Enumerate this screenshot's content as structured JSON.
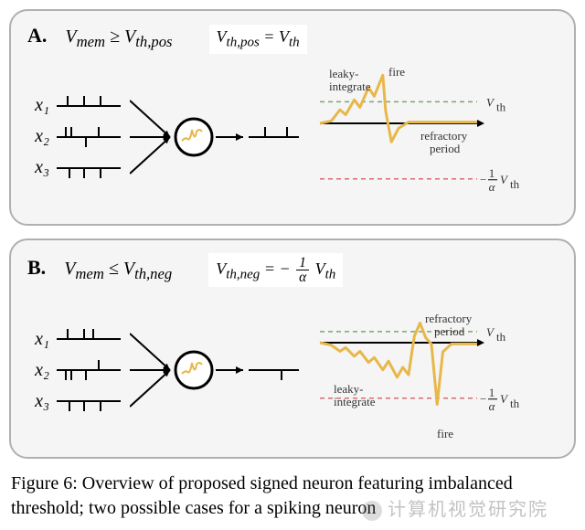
{
  "figure": {
    "caption": "Figure 6: Overview of proposed signed neuron featuring imbalanced threshold; two possible cases for a spiking neuron",
    "watermark": "计算机视觉研究院"
  },
  "colors": {
    "panel_border": "#b0b0b0",
    "panel_bg": "#f5f5f5",
    "signal": "#e8b74a",
    "axis": "#000000",
    "vth_line": "#7fa56a",
    "neg_line": "#d96c6c",
    "text": "#222222"
  },
  "panelA": {
    "letter": "A.",
    "cond_html": "V<sub>mem</sub> ≥ V<sub>th,pos</sub>",
    "eq_html": "V<sub>th,pos</sub>  =  V<sub>th</sub>",
    "inputs": [
      {
        "label": "x₁",
        "spikes_up": [
          12,
          30,
          48
        ],
        "spikes_down": []
      },
      {
        "label": "x₂",
        "spikes_up": [
          10,
          16,
          46
        ],
        "spikes_down": [
          32
        ]
      },
      {
        "label": "x₃",
        "spikes_up": [],
        "spikes_down": [
          14,
          30,
          48
        ]
      }
    ],
    "output_spikes_up": [
      18,
      42
    ],
    "plot": {
      "labels": {
        "leaky": "leaky-\nintegrate",
        "fire": "fire",
        "refractory": "refractory\nperiod",
        "vth": "Vth",
        "negvth": "-1/α Vth"
      },
      "vth_y": 0.35,
      "neg_y": -0.9,
      "curve": [
        [
          0,
          0
        ],
        [
          8,
          0.04
        ],
        [
          14,
          0.22
        ],
        [
          18,
          0.14
        ],
        [
          24,
          0.38
        ],
        [
          28,
          0.26
        ],
        [
          34,
          0.58
        ],
        [
          38,
          0.44
        ],
        [
          44,
          0.78
        ],
        [
          46,
          0.2
        ],
        [
          50,
          -0.3
        ],
        [
          55,
          -0.08
        ],
        [
          62,
          0.02
        ],
        [
          80,
          0.02
        ],
        [
          110,
          0.02
        ]
      ]
    }
  },
  "panelB": {
    "letter": "B.",
    "cond_html": "V<sub>mem</sub> ≤ V<sub>th,neg</sub>",
    "eq_html": "V<sub>th,neg</sub>  =  − <span class=\"frac\"><span class=\"num\">1</span><span class=\"den\">α</span></span> V<sub>th</sub>",
    "inputs": [
      {
        "label": "x₁",
        "spikes_up": [
          12,
          30,
          40
        ],
        "spikes_down": []
      },
      {
        "label": "x₂",
        "spikes_up": [
          46
        ],
        "spikes_down": [
          10,
          16,
          32
        ]
      },
      {
        "label": "x₃",
        "spikes_up": [],
        "spikes_down": [
          14,
          30,
          48
        ]
      }
    ],
    "output_spikes_down": [
      36
    ],
    "plot": {
      "labels": {
        "leaky": "leaky-\nintegrate",
        "fire": "fire",
        "refractory": "refractory\nperiod",
        "vth": "Vth",
        "negvth": "-1/α Vth"
      },
      "vth_y": 0.18,
      "neg_y": -0.9,
      "curve": [
        [
          0,
          0
        ],
        [
          8,
          -0.04
        ],
        [
          14,
          -0.14
        ],
        [
          18,
          -0.08
        ],
        [
          24,
          -0.22
        ],
        [
          28,
          -0.14
        ],
        [
          34,
          -0.32
        ],
        [
          38,
          -0.24
        ],
        [
          44,
          -0.44
        ],
        [
          48,
          -0.3
        ],
        [
          54,
          -0.56
        ],
        [
          58,
          -0.4
        ],
        [
          62,
          -0.52
        ],
        [
          66,
          0.1
        ],
        [
          70,
          0.32
        ],
        [
          74,
          0.08
        ],
        [
          78,
          -0.02
        ],
        [
          82,
          -1.0
        ],
        [
          86,
          -0.15
        ],
        [
          92,
          -0.02
        ],
        [
          110,
          -0.02
        ]
      ]
    }
  }
}
